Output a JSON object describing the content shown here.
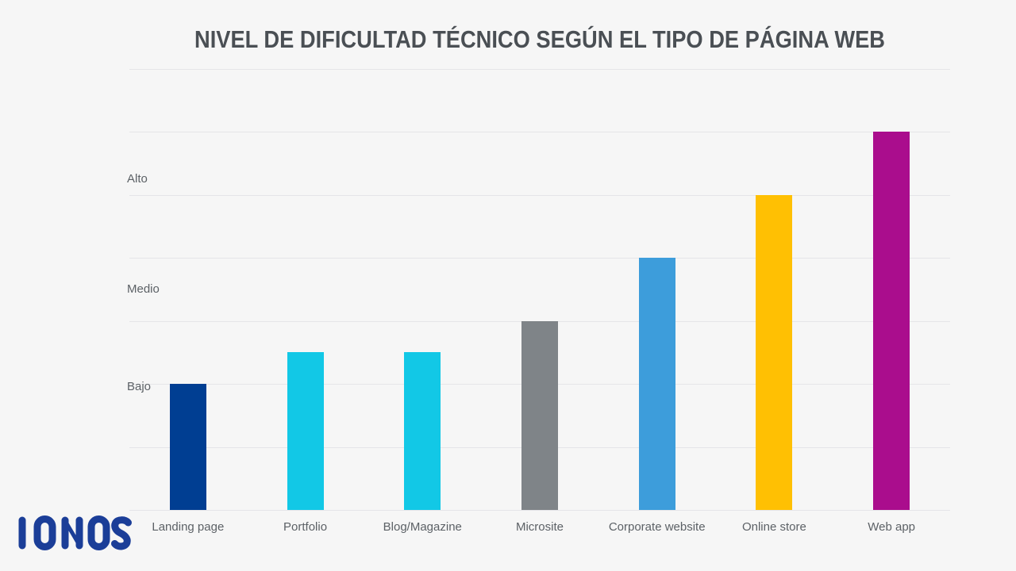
{
  "page": {
    "background": "#F6F6F6",
    "gridline_color": "#E5E5E8",
    "title_color": "#4A4F54",
    "axis_text_color": "#5C6166"
  },
  "logo": {
    "text": "IONOS",
    "color": "#1B3E98"
  },
  "chart_data": {
    "type": "bar",
    "title": "NIVEL DE DIFICULTAD TÉCNICO SEGÚN EL TIPO DE PÁGINA WEB",
    "categories": [
      "Landing page",
      "Portfolio",
      "Blog/Magazine",
      "Microsite",
      "Corporate website",
      "Online store",
      "Web app"
    ],
    "values": [
      2,
      2.5,
      2.5,
      3,
      4,
      5,
      6
    ],
    "bar_colors": [
      "#003E92",
      "#12C8E6",
      "#12C8E6",
      "#7F8488",
      "#3D9DDB",
      "#FFC003",
      "#AA0D8D"
    ],
    "ylim": [
      0,
      7
    ],
    "grid": true,
    "legend": "none",
    "xlabel": "",
    "ylabel": "",
    "y_tick_labels": [
      {
        "label": "Alto",
        "value": 5.25
      },
      {
        "label": "Medio",
        "value": 3.5
      },
      {
        "label": "Bajo",
        "value": 1.95
      }
    ]
  }
}
